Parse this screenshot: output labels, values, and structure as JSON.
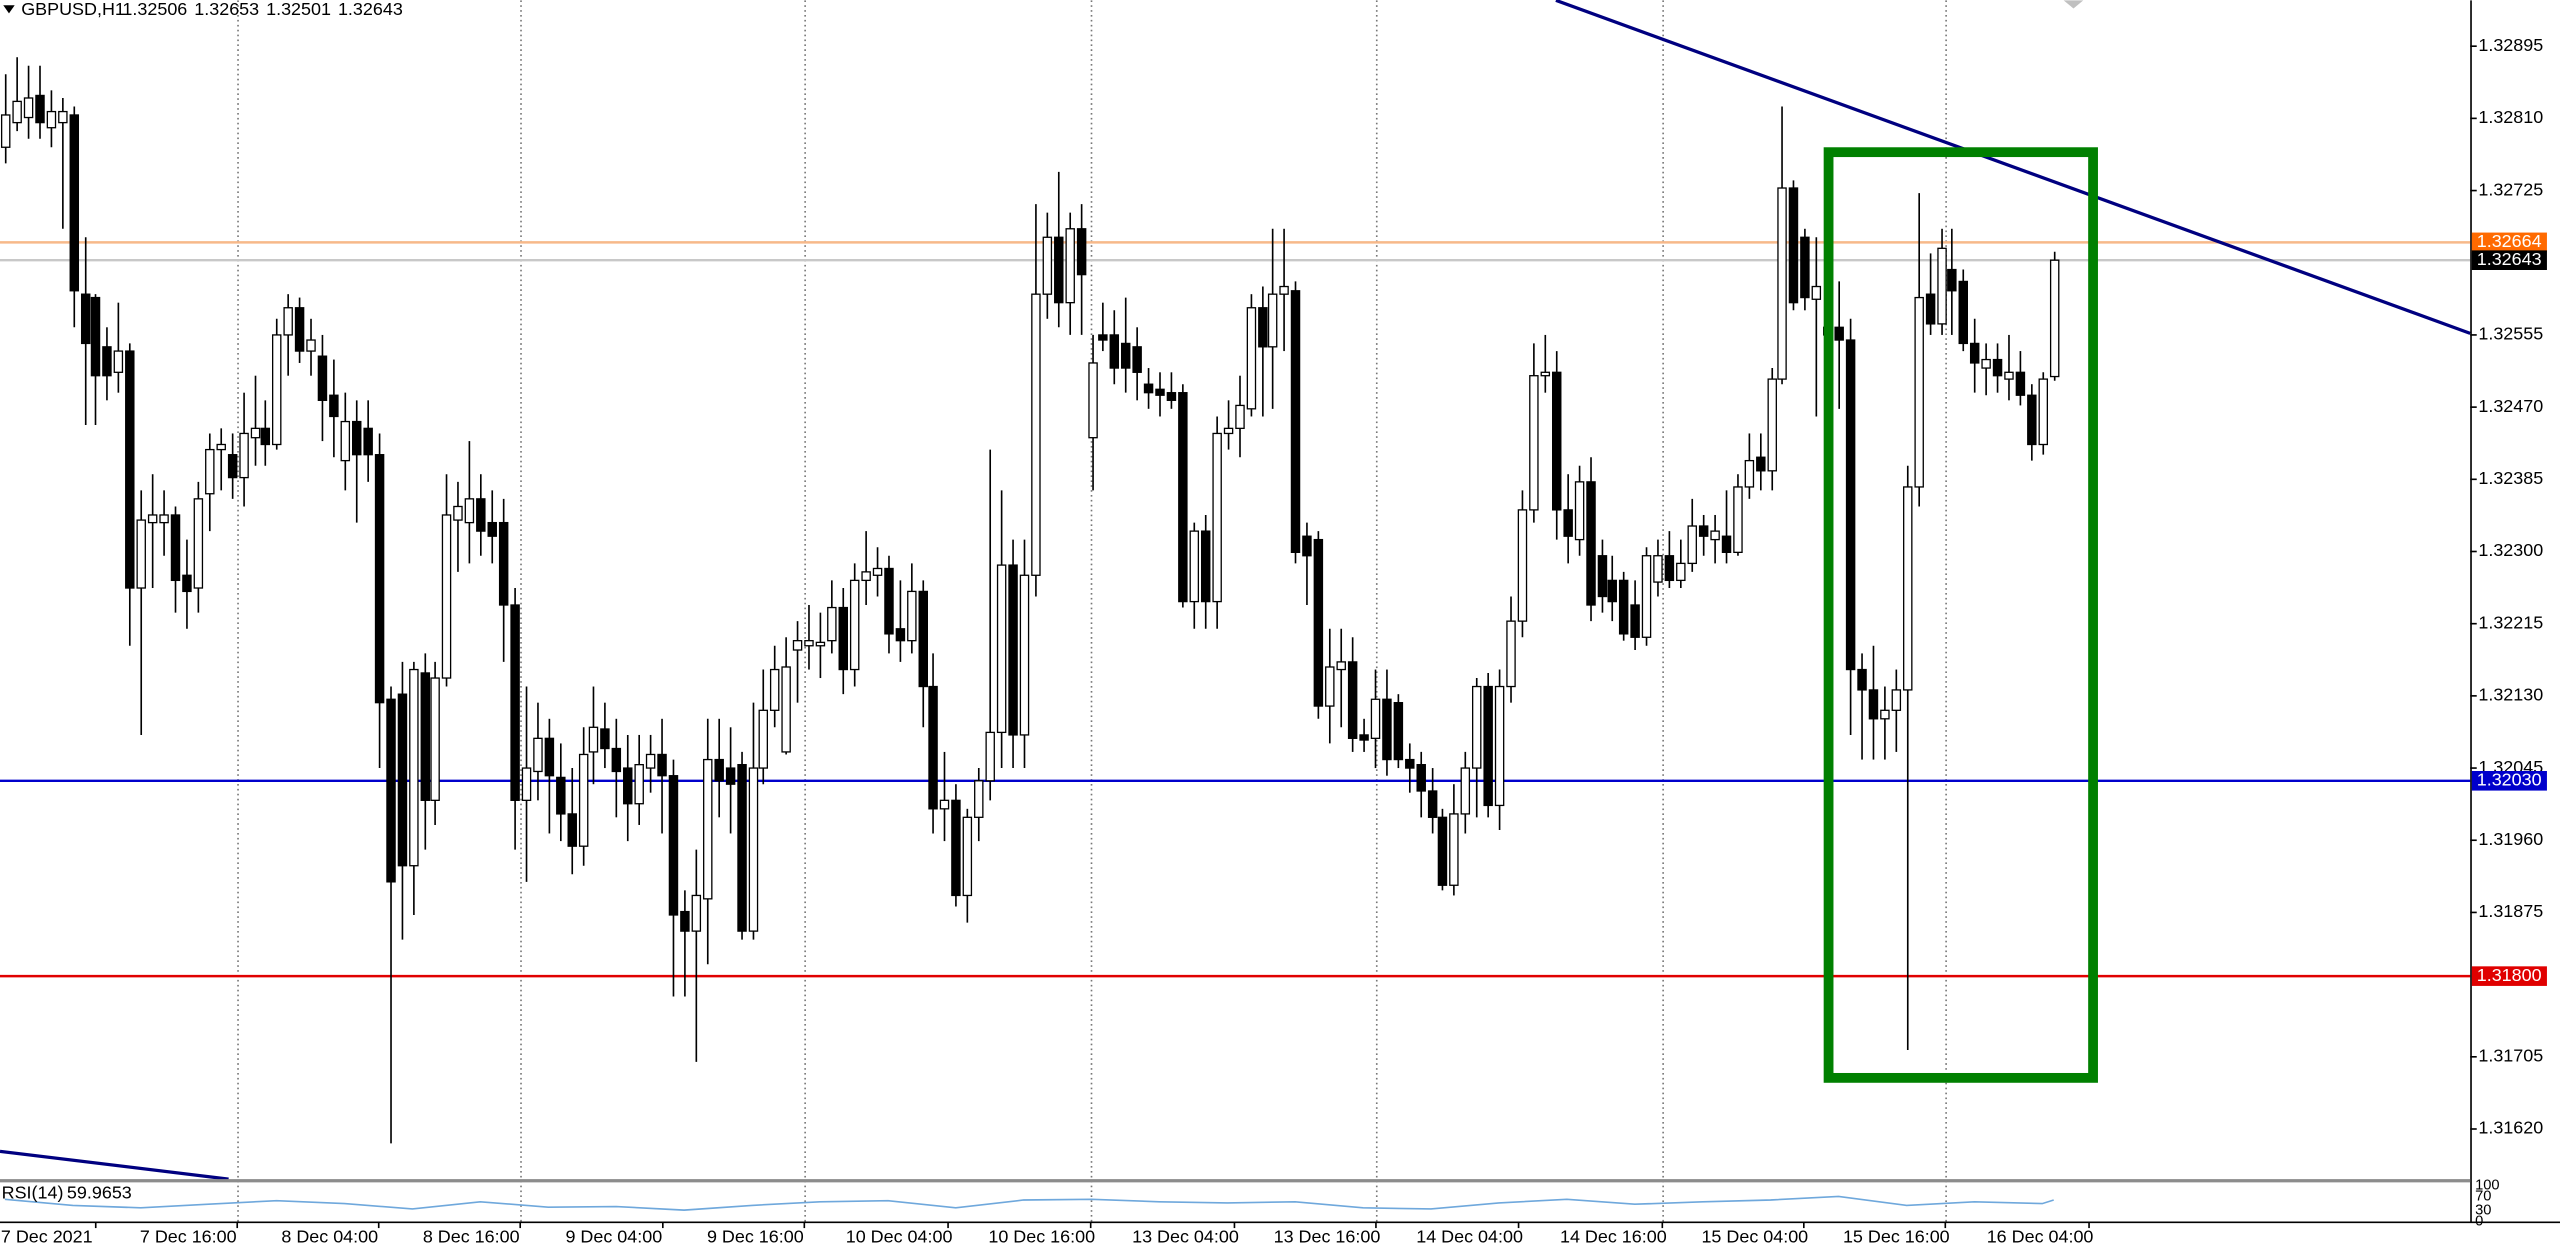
{
  "chart_data": {
    "type": "candlestick",
    "symbol": "GBPUSD,H1",
    "up_color": "#ffffff",
    "down_color": "#000000",
    "grid": true,
    "xlim": [
      -0.43,
      217.8
    ],
    "ylim": [
      1.31561,
      1.32949
    ],
    "xticks": [
      {
        "value": 3.7,
        "label": "7 Dec 2021"
      },
      {
        "value": 16.2,
        "label": "7 Dec 16:00"
      },
      {
        "value": 28.7,
        "label": "8 Dec 04:00"
      },
      {
        "value": 41.2,
        "label": "8 Dec 16:00"
      },
      {
        "value": 53.8,
        "label": "9 Dec 04:00"
      },
      {
        "value": 66.3,
        "label": "9 Dec 16:00"
      },
      {
        "value": 79.0,
        "label": "10 Dec 04:00"
      },
      {
        "value": 91.6,
        "label": "10 Dec 16:00"
      },
      {
        "value": 104.3,
        "label": "13 Dec 04:00"
      },
      {
        "value": 116.8,
        "label": "13 Dec 16:00"
      },
      {
        "value": 129.4,
        "label": "14 Dec 04:00"
      },
      {
        "value": 142.1,
        "label": "14 Dec 16:00"
      },
      {
        "value": 154.6,
        "label": "15 Dec 04:00"
      },
      {
        "value": 167.1,
        "label": "15 Dec 16:00"
      },
      {
        "value": 179.8,
        "label": "16 Dec 04:00"
      }
    ],
    "yticks": [
      1.32895,
      {
        "value": 1.3281,
        "label": "1.32810"
      },
      1.32725,
      1.32555,
      {
        "value": 1.3247,
        "label": "1.32470"
      },
      1.32385,
      {
        "value": 1.323,
        "label": "1.32300"
      },
      1.32215,
      {
        "value": 1.3213,
        "label": "1.32130"
      },
      1.32045,
      {
        "value": 1.3196,
        "label": "1.31960"
      },
      1.31875,
      1.31705,
      {
        "value": 1.3162,
        "label": "1.31620"
      }
    ],
    "levels": [
      {
        "value": 1.32664,
        "color": "#ff6a00",
        "line_color": "#f7b98a"
      },
      {
        "value": 1.32643,
        "color": "#000000",
        "line_color": "#c8c8c8"
      },
      {
        "value": 1.3203,
        "label": "1.32030",
        "color": "#0000cc",
        "line_color": "#0000cc"
      },
      {
        "value": 1.318,
        "label": "1.31800",
        "color": "#e00000",
        "line_color": "#e00000"
      }
    ],
    "ohlc": [
      [
        1.32776,
        1.32862,
        1.32757,
        1.32814
      ],
      [
        1.32805,
        1.32882,
        1.32795,
        1.3283
      ],
      [
        1.32811,
        1.32872,
        1.32786,
        1.32834
      ],
      [
        1.32837,
        1.32872,
        1.32786,
        1.32805
      ],
      [
        1.32799,
        1.32843,
        1.32776,
        1.32818
      ],
      [
        1.32805,
        1.32834,
        1.3268,
        1.32818
      ],
      [
        1.32814,
        1.32824,
        1.32564,
        1.32607
      ],
      [
        1.32603,
        1.3267,
        1.32449,
        1.32545
      ],
      [
        1.32599,
        1.32603,
        1.32449,
        1.32507
      ],
      [
        1.32541,
        1.32564,
        1.32478,
        1.32507
      ],
      [
        1.32511,
        1.32593,
        1.32487,
        1.32536
      ],
      [
        1.32536,
        1.32545,
        1.32189,
        1.32257
      ],
      [
        1.32257,
        1.32372,
        1.32084,
        1.32337
      ],
      [
        1.32334,
        1.32391,
        1.32257,
        1.32343
      ],
      [
        1.32334,
        1.32372,
        1.32295,
        1.32343
      ],
      [
        1.32343,
        1.32353,
        1.32228,
        1.32266
      ],
      [
        1.32272,
        1.32314,
        1.32209,
        1.32253
      ],
      [
        1.32257,
        1.32382,
        1.32228,
        1.32362
      ],
      [
        1.32368,
        1.32439,
        1.32324,
        1.3242
      ],
      [
        1.3242,
        1.32445,
        1.32372,
        1.32426
      ],
      [
        1.32414,
        1.32439,
        1.32362,
        1.32387
      ],
      [
        1.32387,
        1.32487,
        1.32353,
        1.32439
      ],
      [
        1.32434,
        1.32507,
        1.32401,
        1.32445
      ],
      [
        1.32445,
        1.32478,
        1.32401,
        1.32426
      ],
      [
        1.32426,
        1.32574,
        1.3242,
        1.32555
      ],
      [
        1.32555,
        1.32603,
        1.32507,
        1.32587
      ],
      [
        1.32587,
        1.32599,
        1.32522,
        1.32536
      ],
      [
        1.32536,
        1.32574,
        1.32507,
        1.32549
      ],
      [
        1.3253,
        1.32555,
        1.3243,
        1.32478
      ],
      [
        1.32484,
        1.32526,
        1.32411,
        1.32459
      ],
      [
        1.32407,
        1.32487,
        1.32372,
        1.32453
      ],
      [
        1.32453,
        1.32478,
        1.32334,
        1.32414
      ],
      [
        1.32445,
        1.32478,
        1.32382,
        1.32414
      ],
      [
        1.32414,
        1.32439,
        1.32045,
        1.32122
      ],
      [
        1.32126,
        1.32141,
        1.31603,
        1.31911
      ],
      [
        1.32132,
        1.3217,
        1.31843,
        1.3193
      ],
      [
        1.3193,
        1.3217,
        1.31872,
        1.32161
      ],
      [
        1.32157,
        1.3218,
        1.31949,
        1.32007
      ],
      [
        1.32007,
        1.3217,
        1.31978,
        1.32151
      ],
      [
        1.32151,
        1.32391,
        1.32141,
        1.32343
      ],
      [
        1.32337,
        1.32382,
        1.32276,
        1.32353
      ],
      [
        1.32334,
        1.3243,
        1.32286,
        1.32362
      ],
      [
        1.32362,
        1.32391,
        1.32295,
        1.32324
      ],
      [
        1.32334,
        1.32372,
        1.32286,
        1.32318
      ],
      [
        1.32334,
        1.32362,
        1.3217,
        1.32237
      ],
      [
        1.32237,
        1.32257,
        1.31949,
        1.32007
      ],
      [
        1.32007,
        1.32141,
        1.31911,
        1.32045
      ],
      [
        1.32041,
        1.32122,
        1.32007,
        1.3208
      ],
      [
        1.3208,
        1.32103,
        1.31968,
        1.32036
      ],
      [
        1.32034,
        1.32074,
        1.31959,
        1.31991
      ],
      [
        1.31991,
        1.32045,
        1.3192,
        1.31953
      ],
      [
        1.31953,
        1.32093,
        1.3193,
        1.32061
      ],
      [
        1.32064,
        1.32141,
        1.32026,
        1.32093
      ],
      [
        1.32091,
        1.32122,
        1.32045,
        1.32068
      ],
      [
        1.32068,
        1.32103,
        1.31987,
        1.32041
      ],
      [
        1.32045,
        1.32084,
        1.31959,
        1.32003
      ],
      [
        1.32003,
        1.32084,
        1.31978,
        1.32049
      ],
      [
        1.32045,
        1.32084,
        1.32016,
        1.32061
      ],
      [
        1.32061,
        1.32103,
        1.31968,
        1.32036
      ],
      [
        1.32036,
        1.32055,
        1.31776,
        1.31872
      ],
      [
        1.31876,
        1.31901,
        1.31776,
        1.31853
      ],
      [
        1.31853,
        1.31949,
        1.31699,
        1.31895
      ],
      [
        1.31891,
        1.32103,
        1.31814,
        1.32055
      ],
      [
        1.32055,
        1.32103,
        1.31987,
        1.3203
      ],
      [
        1.32045,
        1.32093,
        1.31968,
        1.32026
      ],
      [
        1.32049,
        1.32064,
        1.31843,
        1.31853
      ],
      [
        1.31853,
        1.32122,
        1.31843,
        1.32045
      ],
      [
        1.32045,
        1.32161,
        1.32026,
        1.32113
      ],
      [
        1.32113,
        1.32189,
        1.32093,
        1.32161
      ],
      [
        1.32064,
        1.32199,
        1.32061,
        1.32164
      ],
      [
        1.32184,
        1.32218,
        1.32122,
        1.32195
      ],
      [
        1.32189,
        1.32237,
        1.32161,
        1.32195
      ],
      [
        1.32189,
        1.32228,
        1.32151,
        1.32193
      ],
      [
        1.32195,
        1.32266,
        1.3218,
        1.32234
      ],
      [
        1.32234,
        1.32257,
        1.32132,
        1.32161
      ],
      [
        1.32161,
        1.32286,
        1.32141,
        1.32266
      ],
      [
        1.32266,
        1.32324,
        1.32237,
        1.32276
      ],
      [
        1.32272,
        1.32305,
        1.32247,
        1.3228
      ],
      [
        1.3228,
        1.32295,
        1.3218,
        1.32203
      ],
      [
        1.32209,
        1.32266,
        1.3217,
        1.32195
      ],
      [
        1.32195,
        1.32286,
        1.3218,
        1.32253
      ],
      [
        1.32253,
        1.32266,
        1.32093,
        1.32141
      ],
      [
        1.32141,
        1.3218,
        1.31968,
        1.31997
      ],
      [
        1.31997,
        1.32064,
        1.31959,
        1.32007
      ],
      [
        1.32007,
        1.32026,
        1.31882,
        1.31895
      ],
      [
        1.31895,
        1.31997,
        1.31863,
        1.31987
      ],
      [
        1.31987,
        1.32045,
        1.31959,
        1.3203
      ],
      [
        1.3203,
        1.3242,
        1.32007,
        1.32087
      ],
      [
        1.32087,
        1.32372,
        1.32045,
        1.32284
      ],
      [
        1.32284,
        1.32314,
        1.32045,
        1.32084
      ],
      [
        1.32084,
        1.32314,
        1.32045,
        1.32272
      ],
      [
        1.32272,
        1.32709,
        1.32247,
        1.32603
      ],
      [
        1.32603,
        1.32699,
        1.32574,
        1.3267
      ],
      [
        1.3267,
        1.32747,
        1.32564,
        1.32593
      ],
      [
        1.32593,
        1.32699,
        1.32555,
        1.3268
      ],
      [
        1.3268,
        1.32709,
        1.32555,
        1.32626
      ],
      [
        1.32434,
        1.32555,
        1.32372,
        1.32522
      ],
      [
        1.32555,
        1.32593,
        1.32536,
        1.32549
      ],
      [
        1.32555,
        1.32584,
        1.32497,
        1.32516
      ],
      [
        1.32545,
        1.32599,
        1.32487,
        1.32516
      ],
      [
        1.32541,
        1.32564,
        1.32478,
        1.32511
      ],
      [
        1.32497,
        1.32516,
        1.32468,
        1.32487
      ],
      [
        1.32491,
        1.32511,
        1.32459,
        1.32484
      ],
      [
        1.32487,
        1.32511,
        1.32468,
        1.32478
      ],
      [
        1.32487,
        1.32497,
        1.32234,
        1.32241
      ],
      [
        1.32241,
        1.32334,
        1.32209,
        1.32324
      ],
      [
        1.32324,
        1.32343,
        1.32209,
        1.32241
      ],
      [
        1.32241,
        1.32459,
        1.32209,
        1.32439
      ],
      [
        1.32439,
        1.32478,
        1.3242,
        1.32445
      ],
      [
        1.32445,
        1.32507,
        1.32411,
        1.32472
      ],
      [
        1.32468,
        1.32603,
        1.32459,
        1.32587
      ],
      [
        1.32587,
        1.32612,
        1.32459,
        1.32541
      ],
      [
        1.32541,
        1.3268,
        1.32468,
        1.32603
      ],
      [
        1.32603,
        1.3268,
        1.32536,
        1.32612
      ],
      [
        1.32607,
        1.32618,
        1.32286,
        1.32299
      ],
      [
        1.32318,
        1.32334,
        1.32237,
        1.32295
      ],
      [
        1.32314,
        1.32324,
        1.32103,
        1.32118
      ],
      [
        1.32118,
        1.32209,
        1.32074,
        1.32164
      ],
      [
        1.32161,
        1.32209,
        1.32093,
        1.3217
      ],
      [
        1.3217,
        1.32199,
        1.32064,
        1.3208
      ],
      [
        1.32084,
        1.32103,
        1.32064,
        1.32078
      ],
      [
        1.3208,
        1.32161,
        1.32045,
        1.32126
      ],
      [
        1.32126,
        1.32161,
        1.32036,
        1.32055
      ],
      [
        1.32122,
        1.32132,
        1.32045,
        1.32055
      ],
      [
        1.32055,
        1.32074,
        1.32016,
        1.32045
      ],
      [
        1.32049,
        1.32064,
        1.31987,
        1.32018
      ],
      [
        1.32018,
        1.32045,
        1.31968,
        1.31987
      ],
      [
        1.31987,
        1.31997,
        1.31901,
        1.31907
      ],
      [
        1.31907,
        1.32026,
        1.31895,
        1.31991
      ],
      [
        1.31991,
        1.32064,
        1.31968,
        1.32045
      ],
      [
        1.32045,
        1.32151,
        1.31987,
        1.32141
      ],
      [
        1.32141,
        1.32157,
        1.31987,
        1.32001
      ],
      [
        1.32001,
        1.32161,
        1.31972,
        1.32141
      ],
      [
        1.32141,
        1.32247,
        1.32122,
        1.32218
      ],
      [
        1.32218,
        1.32372,
        1.32199,
        1.32349
      ],
      [
        1.32349,
        1.32545,
        1.32334,
        1.32507
      ],
      [
        1.32507,
        1.32555,
        1.32487,
        1.32511
      ],
      [
        1.32511,
        1.32536,
        1.32314,
        1.32349
      ],
      [
        1.32349,
        1.32391,
        1.32286,
        1.32318
      ],
      [
        1.32314,
        1.32401,
        1.32295,
        1.32382
      ],
      [
        1.32382,
        1.32411,
        1.32218,
        1.32237
      ],
      [
        1.32295,
        1.32314,
        1.32228,
        1.32247
      ],
      [
        1.32266,
        1.32295,
        1.32218,
        1.32241
      ],
      [
        1.32266,
        1.32276,
        1.32195,
        1.32203
      ],
      [
        1.32237,
        1.32266,
        1.32184,
        1.32199
      ],
      [
        1.32199,
        1.32305,
        1.32189,
        1.32295
      ],
      [
        1.32264,
        1.32314,
        1.32247,
        1.32295
      ],
      [
        1.32295,
        1.32324,
        1.32257,
        1.32266
      ],
      [
        1.32266,
        1.32314,
        1.32257,
        1.32286
      ],
      [
        1.32286,
        1.32362,
        1.32276,
        1.3233
      ],
      [
        1.3233,
        1.32343,
        1.32295,
        1.32318
      ],
      [
        1.32314,
        1.32343,
        1.32286,
        1.32324
      ],
      [
        1.32318,
        1.32372,
        1.32286,
        1.32299
      ],
      [
        1.32299,
        1.32391,
        1.32295,
        1.32376
      ],
      [
        1.32376,
        1.32439,
        1.32362,
        1.32407
      ],
      [
        1.32411,
        1.32439,
        1.32372,
        1.32395
      ],
      [
        1.32395,
        1.32516,
        1.32372,
        1.32503
      ],
      [
        1.32503,
        1.32824,
        1.32497,
        1.32728
      ],
      [
        1.32728,
        1.32737,
        1.32584,
        1.32593
      ],
      [
        1.3267,
        1.3268,
        1.32584,
        1.32599
      ],
      [
        1.32597,
        1.3267,
        1.32459,
        1.32612
      ],
      [
        1.32555,
        1.32622,
        1.32507,
        1.32564
      ],
      [
        1.32564,
        1.32618,
        1.32468,
        1.32549
      ],
      [
        1.32549,
        1.32574,
        1.32084,
        1.32161
      ],
      [
        1.32161,
        1.3218,
        1.32055,
        1.32137
      ],
      [
        1.32137,
        1.32189,
        1.32055,
        1.32103
      ],
      [
        1.32103,
        1.32141,
        1.32055,
        1.32113
      ],
      [
        1.32113,
        1.32161,
        1.32064,
        1.32137
      ],
      [
        1.32137,
        1.32401,
        1.31713,
        1.32376
      ],
      [
        1.32376,
        1.32722,
        1.32353,
        1.32599
      ],
      [
        1.32603,
        1.32651,
        1.32555,
        1.32568
      ],
      [
        1.32568,
        1.3268,
        1.32555,
        1.32657
      ],
      [
        1.32632,
        1.3268,
        1.32555,
        1.32607
      ],
      [
        1.32618,
        1.32632,
        1.32536,
        1.32545
      ],
      [
        1.32545,
        1.32574,
        1.32487,
        1.32522
      ],
      [
        1.32516,
        1.32545,
        1.32484,
        1.32526
      ],
      [
        1.32526,
        1.32545,
        1.32487,
        1.32507
      ],
      [
        1.32503,
        1.32555,
        1.32478,
        1.32511
      ],
      [
        1.32511,
        1.32536,
        1.32472,
        1.32484
      ],
      [
        1.32484,
        1.32497,
        1.32407,
        1.32426
      ],
      [
        1.32426,
        1.32511,
        1.32414,
        1.32503
      ],
      [
        1.32506,
        1.32653,
        1.32501,
        1.32643
      ]
    ],
    "indicator": {
      "name": "RSI(14)",
      "value": 59.9653,
      "color": "#6fa8dc",
      "ylim": [
        0,
        100
      ],
      "yticks": [
        100,
        70,
        30,
        0
      ],
      "x": [
        0,
        6,
        12,
        18,
        24,
        30,
        36,
        42,
        48,
        54,
        60,
        66,
        72,
        78,
        84,
        90,
        96,
        102,
        108,
        114,
        120,
        126,
        132,
        138,
        144,
        150,
        156,
        162,
        168,
        174,
        180,
        181
      ],
      "values": [
        62,
        45,
        38,
        48,
        58,
        50,
        35,
        55,
        40,
        42,
        32,
        45,
        55,
        58,
        38,
        60,
        62,
        55,
        52,
        55,
        38,
        35,
        52,
        62,
        48,
        55,
        60,
        70,
        45,
        55,
        50,
        59.9653
      ]
    }
  }
}
